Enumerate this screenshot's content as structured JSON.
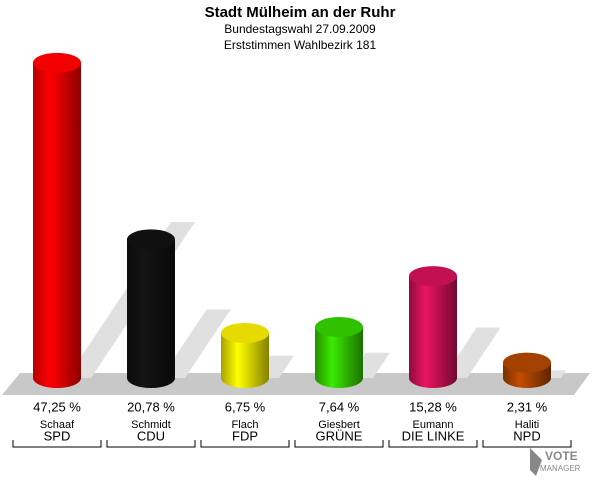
{
  "chart_data": {
    "type": "bar",
    "title": "Stadt Mülheim an der Ruhr",
    "subtitles": [
      "Bundestagswahl 27.09.2009",
      "Erststimmen Wahlbezirk 181"
    ],
    "categories": [
      "SPD",
      "CDU",
      "FDP",
      "GRÜNE",
      "DIE LINKE",
      "NPD"
    ],
    "candidates": [
      "Schaaf",
      "Schmidt",
      "Flach",
      "Giesbert",
      "Eumann",
      "Haliti"
    ],
    "values": [
      47.25,
      20.78,
      6.75,
      7.64,
      15.28,
      2.31
    ],
    "value_labels": [
      "47,25 %",
      "20,78 %",
      "6,75 %",
      "7,64 %",
      "15,28 %",
      "2,31 %"
    ],
    "colors": [
      "#ff0000",
      "#111111",
      "#f2e600",
      "#33cc00",
      "#cc1155",
      "#aa4400"
    ]
  },
  "logo": [
    "VOTE",
    "MANAGER"
  ]
}
